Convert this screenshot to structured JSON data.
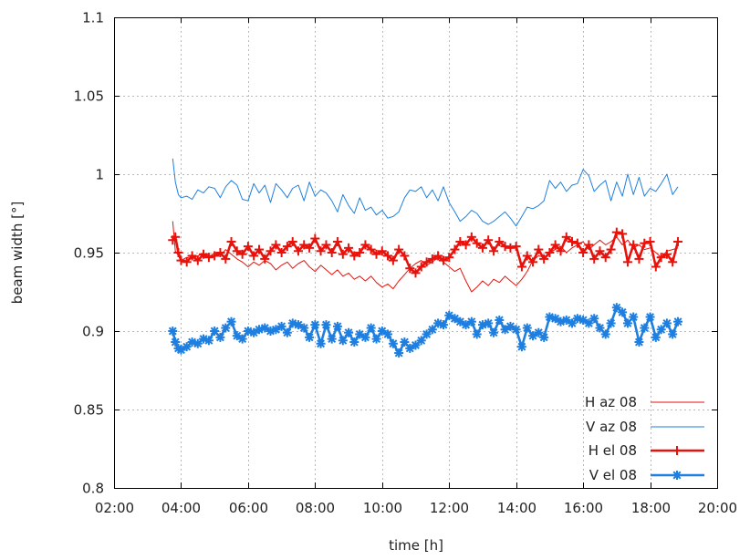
{
  "chart_data": {
    "type": "line",
    "xlabel": "time [h]",
    "ylabel": "beam width [°]",
    "xlim": [
      2,
      20
    ],
    "ylim": [
      0.8,
      1.1
    ],
    "x_ticks": [
      "02:00",
      "04:00",
      "06:00",
      "08:00",
      "10:00",
      "12:00",
      "14:00",
      "16:00",
      "18:00",
      "20:00"
    ],
    "y_ticks": [
      "0.8",
      "0.85",
      "0.9",
      "0.95",
      "1",
      "1.05",
      "1.1"
    ],
    "grid": true,
    "legend_position": "bottom-right",
    "series": [
      {
        "name": "H az 08",
        "color": "#e8120c",
        "style": "thin-line",
        "x": [
          3.75,
          3.83,
          3.92,
          4.0,
          4.17,
          4.33,
          4.5,
          4.67,
          4.83,
          5.0,
          5.17,
          5.33,
          5.5,
          5.67,
          5.83,
          6.0,
          6.17,
          6.33,
          6.5,
          6.67,
          6.83,
          7.0,
          7.17,
          7.33,
          7.5,
          7.67,
          7.83,
          8.0,
          8.17,
          8.33,
          8.5,
          8.67,
          8.83,
          9.0,
          9.17,
          9.33,
          9.5,
          9.67,
          9.83,
          10.0,
          10.17,
          10.33,
          10.5,
          10.67,
          10.83,
          11.0,
          11.17,
          11.33,
          11.5,
          11.67,
          11.83,
          12.0,
          12.17,
          12.33,
          12.5,
          12.67,
          12.83,
          13.0,
          13.17,
          13.33,
          13.5,
          13.67,
          13.83,
          14.0,
          14.17,
          14.33,
          14.5,
          14.67,
          14.83,
          15.0,
          15.17,
          15.33,
          15.5,
          15.67,
          15.83,
          16.0,
          16.17,
          16.33,
          16.5,
          16.67,
          16.83,
          17.0,
          17.17,
          17.33,
          17.5,
          17.67,
          17.83,
          18.0,
          18.17,
          18.33,
          18.5,
          18.67,
          18.83
        ],
        "values": [
          0.97,
          0.951,
          0.948,
          0.945,
          0.947,
          0.946,
          0.948,
          0.949,
          0.947,
          0.95,
          0.948,
          0.952,
          0.949,
          0.946,
          0.944,
          0.941,
          0.944,
          0.942,
          0.945,
          0.943,
          0.939,
          0.942,
          0.944,
          0.94,
          0.943,
          0.945,
          0.941,
          0.938,
          0.942,
          0.939,
          0.936,
          0.939,
          0.935,
          0.937,
          0.933,
          0.935,
          0.932,
          0.935,
          0.931,
          0.928,
          0.93,
          0.927,
          0.932,
          0.936,
          0.94,
          0.943,
          0.945,
          0.942,
          0.944,
          0.947,
          0.944,
          0.941,
          0.938,
          0.94,
          0.932,
          0.925,
          0.928,
          0.932,
          0.929,
          0.933,
          0.931,
          0.935,
          0.932,
          0.929,
          0.933,
          0.938,
          0.945,
          0.948,
          0.947,
          0.95,
          0.952,
          0.954,
          0.95,
          0.953,
          0.955,
          0.957,
          0.952,
          0.955,
          0.958,
          0.955,
          0.957,
          0.96,
          0.955,
          0.958,
          0.953,
          0.955,
          0.952,
          0.953,
          0.95,
          0.947,
          0.951,
          0.952,
          0.953
        ]
      },
      {
        "name": "V az 08",
        "color": "#1e7fe0",
        "style": "thin-line",
        "x": [
          3.75,
          3.83,
          3.92,
          4.0,
          4.17,
          4.33,
          4.5,
          4.67,
          4.83,
          5.0,
          5.17,
          5.33,
          5.5,
          5.67,
          5.83,
          6.0,
          6.17,
          6.33,
          6.5,
          6.67,
          6.83,
          7.0,
          7.17,
          7.33,
          7.5,
          7.67,
          7.83,
          8.0,
          8.17,
          8.33,
          8.5,
          8.67,
          8.83,
          9.0,
          9.17,
          9.33,
          9.5,
          9.67,
          9.83,
          10.0,
          10.17,
          10.33,
          10.5,
          10.67,
          10.83,
          11.0,
          11.17,
          11.33,
          11.5,
          11.67,
          11.83,
          12.0,
          12.17,
          12.33,
          12.5,
          12.67,
          12.83,
          13.0,
          13.17,
          13.33,
          13.5,
          13.67,
          13.83,
          14.0,
          14.17,
          14.33,
          14.5,
          14.67,
          14.83,
          15.0,
          15.17,
          15.33,
          15.5,
          15.67,
          15.83,
          16.0,
          16.17,
          16.33,
          16.5,
          16.67,
          16.83,
          17.0,
          17.17,
          17.33,
          17.5,
          17.67,
          17.83,
          18.0,
          18.17,
          18.33,
          18.5,
          18.67,
          18.83
        ],
        "values": [
          1.01,
          0.995,
          0.987,
          0.985,
          0.986,
          0.984,
          0.99,
          0.988,
          0.992,
          0.991,
          0.985,
          0.992,
          0.996,
          0.993,
          0.984,
          0.983,
          0.994,
          0.988,
          0.993,
          0.982,
          0.994,
          0.99,
          0.985,
          0.991,
          0.993,
          0.983,
          0.995,
          0.986,
          0.99,
          0.988,
          0.983,
          0.976,
          0.987,
          0.98,
          0.975,
          0.985,
          0.977,
          0.979,
          0.974,
          0.977,
          0.972,
          0.973,
          0.976,
          0.985,
          0.99,
          0.989,
          0.992,
          0.985,
          0.99,
          0.983,
          0.992,
          0.982,
          0.976,
          0.97,
          0.973,
          0.977,
          0.975,
          0.97,
          0.968,
          0.97,
          0.973,
          0.976,
          0.972,
          0.967,
          0.973,
          0.979,
          0.978,
          0.98,
          0.983,
          0.996,
          0.991,
          0.995,
          0.989,
          0.993,
          0.994,
          1.003,
          0.999,
          0.989,
          0.993,
          0.996,
          0.983,
          0.995,
          0.986,
          1.0,
          0.987,
          0.998,
          0.986,
          0.991,
          0.989,
          0.994,
          1.0,
          0.987,
          0.992
        ]
      },
      {
        "name": "H el 08",
        "color": "#e8120c",
        "style": "thick-line-plus",
        "x": [
          3.75,
          3.83,
          3.92,
          4.0,
          4.17,
          4.33,
          4.5,
          4.67,
          4.83,
          5.0,
          5.17,
          5.33,
          5.5,
          5.67,
          5.83,
          6.0,
          6.17,
          6.33,
          6.5,
          6.67,
          6.83,
          7.0,
          7.17,
          7.33,
          7.5,
          7.67,
          7.83,
          8.0,
          8.17,
          8.33,
          8.5,
          8.67,
          8.83,
          9.0,
          9.17,
          9.33,
          9.5,
          9.67,
          9.83,
          10.0,
          10.17,
          10.33,
          10.5,
          10.67,
          10.83,
          11.0,
          11.17,
          11.33,
          11.5,
          11.67,
          11.83,
          12.0,
          12.17,
          12.33,
          12.5,
          12.67,
          12.83,
          13.0,
          13.17,
          13.33,
          13.5,
          13.67,
          13.83,
          14.0,
          14.17,
          14.33,
          14.5,
          14.67,
          14.83,
          15.0,
          15.17,
          15.33,
          15.5,
          15.67,
          15.83,
          16.0,
          16.17,
          16.33,
          16.5,
          16.67,
          16.83,
          17.0,
          17.17,
          17.33,
          17.5,
          17.67,
          17.83,
          18.0,
          18.17,
          18.33,
          18.5,
          18.67,
          18.83
        ],
        "values": [
          0.958,
          0.96,
          0.95,
          0.945,
          0.944,
          0.948,
          0.945,
          0.949,
          0.947,
          0.948,
          0.95,
          0.946,
          0.957,
          0.951,
          0.949,
          0.954,
          0.948,
          0.952,
          0.946,
          0.951,
          0.955,
          0.95,
          0.954,
          0.957,
          0.951,
          0.955,
          0.953,
          0.959,
          0.951,
          0.955,
          0.95,
          0.957,
          0.949,
          0.953,
          0.948,
          0.95,
          0.955,
          0.952,
          0.949,
          0.951,
          0.948,
          0.945,
          0.952,
          0.948,
          0.94,
          0.937,
          0.941,
          0.944,
          0.946,
          0.948,
          0.945,
          0.947,
          0.952,
          0.957,
          0.955,
          0.96,
          0.956,
          0.953,
          0.958,
          0.951,
          0.957,
          0.954,
          0.953,
          0.954,
          0.941,
          0.948,
          0.944,
          0.952,
          0.946,
          0.95,
          0.955,
          0.951,
          0.96,
          0.957,
          0.956,
          0.95,
          0.955,
          0.946,
          0.951,
          0.947,
          0.952,
          0.963,
          0.962,
          0.944,
          0.955,
          0.946,
          0.956,
          0.957,
          0.941,
          0.947,
          0.949,
          0.944,
          0.957
        ]
      },
      {
        "name": "V el 08",
        "color": "#1e7fe0",
        "style": "thick-line-star",
        "x": [
          3.75,
          3.83,
          3.92,
          4.0,
          4.17,
          4.33,
          4.5,
          4.67,
          4.83,
          5.0,
          5.17,
          5.33,
          5.5,
          5.67,
          5.83,
          6.0,
          6.17,
          6.33,
          6.5,
          6.67,
          6.83,
          7.0,
          7.17,
          7.33,
          7.5,
          7.67,
          7.83,
          8.0,
          8.17,
          8.33,
          8.5,
          8.67,
          8.83,
          9.0,
          9.17,
          9.33,
          9.5,
          9.67,
          9.83,
          10.0,
          10.17,
          10.33,
          10.5,
          10.67,
          10.83,
          11.0,
          11.17,
          11.33,
          11.5,
          11.67,
          11.83,
          12.0,
          12.17,
          12.33,
          12.5,
          12.67,
          12.83,
          13.0,
          13.17,
          13.33,
          13.5,
          13.67,
          13.83,
          14.0,
          14.17,
          14.33,
          14.5,
          14.67,
          14.83,
          15.0,
          15.17,
          15.33,
          15.5,
          15.67,
          15.83,
          16.0,
          16.17,
          16.33,
          16.5,
          16.67,
          16.83,
          17.0,
          17.17,
          17.33,
          17.5,
          17.67,
          17.83,
          18.0,
          18.17,
          18.33,
          18.5,
          18.67,
          18.83
        ],
        "values": [
          0.9,
          0.893,
          0.889,
          0.888,
          0.89,
          0.893,
          0.892,
          0.895,
          0.894,
          0.9,
          0.896,
          0.902,
          0.906,
          0.897,
          0.895,
          0.9,
          0.899,
          0.901,
          0.902,
          0.9,
          0.901,
          0.903,
          0.899,
          0.905,
          0.904,
          0.902,
          0.896,
          0.904,
          0.892,
          0.904,
          0.895,
          0.903,
          0.894,
          0.899,
          0.893,
          0.898,
          0.896,
          0.902,
          0.895,
          0.9,
          0.898,
          0.892,
          0.886,
          0.893,
          0.889,
          0.891,
          0.894,
          0.898,
          0.901,
          0.905,
          0.904,
          0.91,
          0.908,
          0.906,
          0.904,
          0.906,
          0.898,
          0.904,
          0.905,
          0.899,
          0.907,
          0.901,
          0.903,
          0.901,
          0.89,
          0.902,
          0.897,
          0.899,
          0.896,
          0.909,
          0.908,
          0.906,
          0.907,
          0.905,
          0.908,
          0.907,
          0.905,
          0.908,
          0.902,
          0.898,
          0.905,
          0.915,
          0.912,
          0.905,
          0.909,
          0.893,
          0.902,
          0.909,
          0.896,
          0.901,
          0.905,
          0.898,
          0.906
        ]
      }
    ]
  }
}
